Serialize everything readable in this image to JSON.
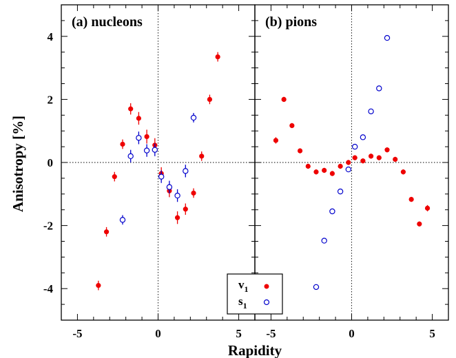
{
  "chart_data": {
    "type": "scatter",
    "xlabel": "Rapidity",
    "ylabel": "Anisotropy [%]",
    "ylim": [
      -5,
      5
    ],
    "yticks": [
      "4",
      "2",
      "0",
      "-2",
      "-4"
    ],
    "legend": {
      "placement": "bottom-center",
      "entries": [
        {
          "label": "v",
          "sub": "1",
          "symbol": "filled-circle",
          "color": "#ee0000"
        },
        {
          "label": "s",
          "sub": "1",
          "symbol": "open-circle",
          "color": "#0000cc"
        }
      ]
    },
    "panels": [
      {
        "title": "(a) nucleons",
        "xlim": [
          -6,
          6
        ],
        "xticks": [
          "-5",
          "0",
          "5"
        ],
        "series": [
          {
            "key": "v1",
            "color": "#ee0000",
            "marker": "filled",
            "x": [
              -3.7,
              -3.2,
              -2.7,
              -2.2,
              -1.7,
              -1.2,
              -0.7,
              -0.2,
              0.2,
              0.7,
              1.2,
              1.7,
              2.2,
              2.7,
              3.2,
              3.7
            ],
            "y": [
              -3.9,
              -2.2,
              -0.45,
              0.58,
              1.7,
              1.4,
              0.82,
              0.55,
              -0.35,
              -0.9,
              -1.75,
              -1.48,
              -0.97,
              0.2,
              2.0,
              3.35
            ],
            "err": [
              0.15,
              0.15,
              0.15,
              0.15,
              0.18,
              0.2,
              0.22,
              0.22,
              0.2,
              0.2,
              0.2,
              0.18,
              0.15,
              0.15,
              0.15,
              0.15
            ]
          },
          {
            "key": "s1",
            "color": "#0000cc",
            "marker": "open",
            "x": [
              -2.2,
              -1.7,
              -1.2,
              -0.7,
              -0.2,
              0.2,
              0.7,
              1.2,
              1.7,
              2.2
            ],
            "y": [
              -1.82,
              0.2,
              0.78,
              0.38,
              0.4,
              -0.45,
              -0.78,
              -1.05,
              -0.27,
              1.42
            ],
            "err": [
              0.15,
              0.2,
              0.2,
              0.2,
              0.2,
              0.2,
              0.2,
              0.2,
              0.2,
              0.15
            ]
          }
        ]
      },
      {
        "title": "(b) pions",
        "xlim": [
          -6,
          6
        ],
        "xticks": [
          "-5",
          "0",
          "5"
        ],
        "series": [
          {
            "key": "v1",
            "color": "#ee0000",
            "marker": "filled",
            "x": [
              -4.7,
              -4.2,
              -3.7,
              -3.2,
              -2.7,
              -2.2,
              -1.7,
              -1.2,
              -0.7,
              -0.2,
              0.2,
              0.7,
              1.2,
              1.7,
              2.2,
              2.7,
              3.2,
              3.7,
              4.2,
              4.7
            ],
            "y": [
              0.7,
              2.0,
              1.17,
              0.37,
              -0.12,
              -0.3,
              -0.25,
              -0.35,
              -0.12,
              0.0,
              0.15,
              0.05,
              0.2,
              0.15,
              0.4,
              0.1,
              -0.3,
              -1.17,
              -1.95,
              -1.45
            ],
            "err": [
              0.1,
              0.08,
              0.08,
              0.08,
              0.08,
              0.08,
              0.08,
              0.08,
              0.08,
              0.08,
              0.08,
              0.08,
              0.08,
              0.08,
              0.08,
              0.08,
              0.08,
              0.08,
              0.08,
              0.1
            ]
          },
          {
            "key": "s1",
            "color": "#0000cc",
            "marker": "open",
            "x": [
              -2.2,
              -1.7,
              -1.2,
              -0.7,
              -0.2,
              0.2,
              0.7,
              1.2,
              1.7,
              2.2
            ],
            "y": [
              -3.95,
              -2.48,
              -1.55,
              -0.92,
              -0.22,
              0.5,
              0.8,
              1.62,
              2.35,
              3.95
            ],
            "err": [
              0.05,
              0.05,
              0.05,
              0.05,
              0.05,
              0.05,
              0.05,
              0.05,
              0.05,
              0.05
            ]
          }
        ]
      }
    ]
  }
}
